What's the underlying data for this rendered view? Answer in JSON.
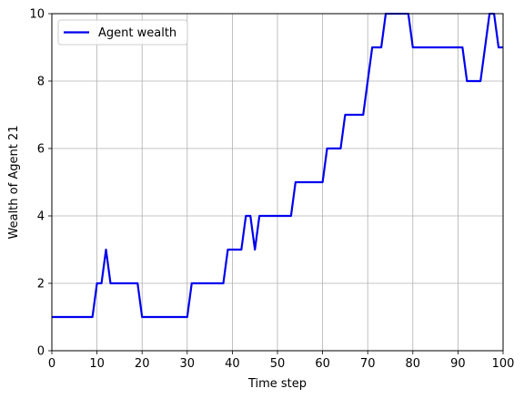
{
  "chart_data": {
    "type": "line",
    "title": "",
    "xlabel": "Time step",
    "ylabel": "Wealth of Agent 21",
    "xlim": [
      0,
      100
    ],
    "ylim": [
      0,
      10
    ],
    "xticks": [
      0,
      10,
      20,
      30,
      40,
      50,
      60,
      70,
      80,
      90,
      100
    ],
    "yticks": [
      0,
      2,
      4,
      6,
      8,
      10
    ],
    "xtick_labels": [
      "0",
      "10",
      "20",
      "30",
      "40",
      "50",
      "60",
      "70",
      "80",
      "90",
      "100"
    ],
    "ytick_labels": [
      "0",
      "2",
      "4",
      "6",
      "8",
      "10"
    ],
    "grid": true,
    "legend_position": "top-left",
    "series": [
      {
        "name": "Agent wealth",
        "color": "#0000ee",
        "x": [
          0,
          1,
          2,
          3,
          4,
          5,
          6,
          7,
          8,
          9,
          10,
          11,
          12,
          13,
          14,
          15,
          16,
          17,
          18,
          19,
          20,
          21,
          22,
          23,
          24,
          25,
          26,
          27,
          28,
          29,
          30,
          31,
          32,
          33,
          34,
          35,
          36,
          37,
          38,
          39,
          40,
          41,
          42,
          43,
          44,
          45,
          46,
          47,
          48,
          49,
          50,
          51,
          52,
          53,
          54,
          55,
          56,
          57,
          58,
          59,
          60,
          61,
          62,
          63,
          64,
          65,
          66,
          67,
          68,
          69,
          70,
          71,
          72,
          73,
          74,
          75,
          76,
          77,
          78,
          79,
          80,
          81,
          82,
          83,
          84,
          85,
          86,
          87,
          88,
          89,
          90,
          91,
          92,
          93,
          94,
          95,
          96,
          97,
          98,
          99,
          100
        ],
        "y": [
          1,
          1,
          1,
          1,
          1,
          1,
          1,
          1,
          1,
          1,
          2,
          2,
          3,
          2,
          2,
          2,
          2,
          2,
          2,
          2,
          1,
          1,
          1,
          1,
          1,
          1,
          1,
          1,
          1,
          1,
          1,
          2,
          2,
          2,
          2,
          2,
          2,
          2,
          2,
          3,
          3,
          3,
          3,
          4,
          4,
          3,
          4,
          4,
          4,
          4,
          4,
          4,
          4,
          4,
          5,
          5,
          5,
          5,
          5,
          5,
          5,
          6,
          6,
          6,
          6,
          7,
          7,
          7,
          7,
          7,
          8,
          9,
          9,
          9,
          10,
          10,
          10,
          10,
          10,
          10,
          9,
          9,
          9,
          9,
          9,
          9,
          9,
          9,
          9,
          9,
          9,
          9,
          8,
          8,
          8,
          8,
          9,
          10,
          10,
          9,
          9
        ]
      }
    ]
  }
}
